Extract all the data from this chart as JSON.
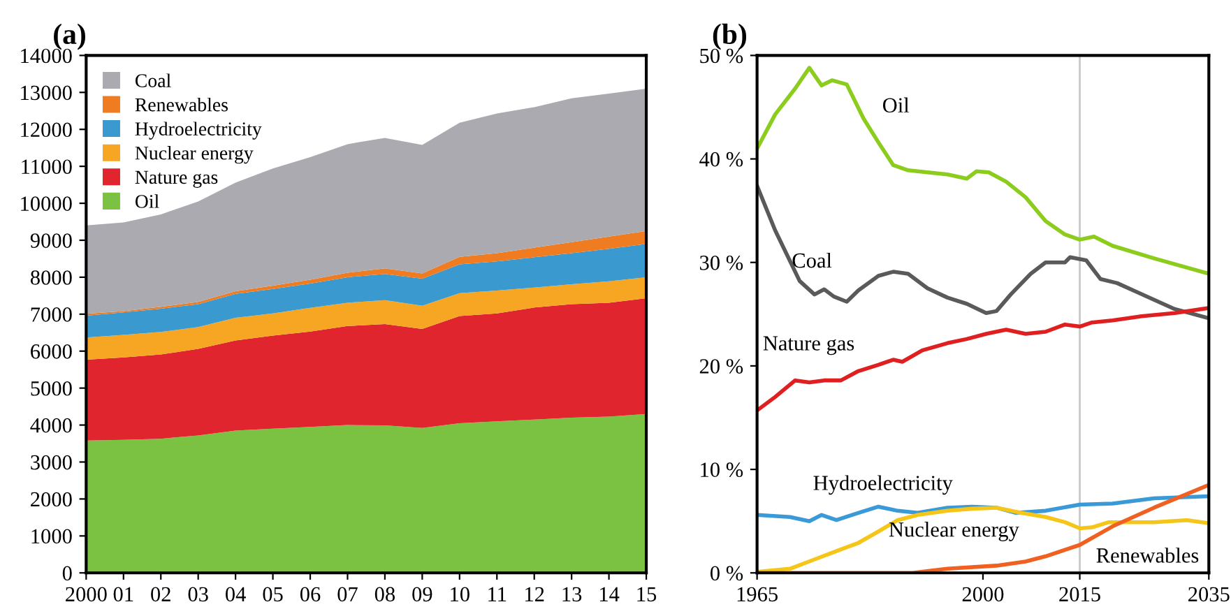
{
  "chart_data": [
    {
      "type": "area",
      "title": "(a)",
      "stacked": true,
      "legend": "top left",
      "x": [
        2000,
        2001,
        2002,
        2003,
        2004,
        2005,
        2006,
        2007,
        2008,
        2009,
        2010,
        2011,
        2012,
        2013,
        2014,
        2015
      ],
      "series": [
        {
          "name": "Oil",
          "color": "#7cc242",
          "values": [
            3580,
            3600,
            3630,
            3720,
            3850,
            3900,
            3950,
            4000,
            3990,
            3920,
            4050,
            4100,
            4150,
            4200,
            4230,
            4300
          ]
        },
        {
          "name": "Nature gas",
          "color": "#e0252f",
          "values": [
            2190,
            2230,
            2280,
            2340,
            2440,
            2520,
            2580,
            2680,
            2740,
            2680,
            2900,
            2920,
            3030,
            3070,
            3080,
            3130
          ]
        },
        {
          "name": "Nuclear energy",
          "color": "#f6a623",
          "values": [
            600,
            610,
            610,
            590,
            610,
            600,
            640,
            630,
            650,
            630,
            620,
            620,
            540,
            540,
            580,
            570
          ]
        },
        {
          "name": "Hydroelectricity",
          "color": "#3a9ad0",
          "values": [
            590,
            610,
            630,
            620,
            650,
            660,
            660,
            690,
            710,
            730,
            780,
            790,
            820,
            840,
            880,
            900
          ]
        },
        {
          "name": "Renewables",
          "color": "#f07c22",
          "values": [
            50,
            30,
            50,
            60,
            70,
            90,
            100,
            120,
            150,
            140,
            200,
            220,
            260,
            300,
            330,
            350
          ]
        },
        {
          "name": "Coal",
          "color": "#aaaab0",
          "values": [
            2390,
            2400,
            2500,
            2720,
            2940,
            3170,
            3320,
            3480,
            3530,
            3480,
            3630,
            3780,
            3800,
            3890,
            3870,
            3850
          ]
        }
      ],
      "xlim": [
        2000,
        2015
      ],
      "xticks": [
        2000,
        {
          "value": 2001,
          "label": "01"
        },
        {
          "value": 2002,
          "label": "02"
        },
        {
          "value": 2003,
          "label": "03"
        },
        {
          "value": 2004,
          "label": "04"
        },
        {
          "value": 2005,
          "label": "05"
        },
        {
          "value": 2006,
          "label": "06"
        },
        {
          "value": 2007,
          "label": "07"
        },
        {
          "value": 2008,
          "label": "08"
        },
        {
          "value": 2009,
          "label": "09"
        },
        {
          "value": 2010,
          "label": "10"
        },
        {
          "value": 2011,
          "label": "11"
        },
        {
          "value": 2012,
          "label": "12"
        },
        {
          "value": 2013,
          "label": "13"
        },
        {
          "value": 2014,
          "label": "14"
        },
        {
          "value": 2015,
          "label": "15"
        }
      ],
      "ylim": [
        0,
        14000
      ],
      "yticks": [
        0,
        1000,
        2000,
        3000,
        4000,
        5000,
        6000,
        7000,
        8000,
        9000,
        10000,
        11000,
        12000,
        13000,
        14000
      ]
    },
    {
      "type": "line",
      "title": "(b)",
      "legend": false,
      "series": [
        {
          "name": "Oil",
          "color": "#8ccc1c",
          "x": [
            1965,
            1967.8,
            1970.9,
            1973.1,
            1975,
            1976.6,
            1978.9,
            1981.5,
            1983.8,
            1986.1,
            1988.4,
            1991.4,
            1994.5,
            1997.5,
            1999,
            2000.9,
            2003.6,
            2006.6,
            2009.7,
            2012.7,
            2015,
            2017.2,
            2020.1,
            2026.5,
            2035
          ],
          "values": [
            41.0,
            44.3,
            46.8,
            48.8,
            47.1,
            47.6,
            47.2,
            43.9,
            41.6,
            39.4,
            38.9,
            38.7,
            38.5,
            38.1,
            38.8,
            38.7,
            37.8,
            36.3,
            34.0,
            32.7,
            32.2,
            32.5,
            31.6,
            30.4,
            28.9
          ]
        },
        {
          "name": "Coal",
          "color": "#5a5a5a",
          "x": [
            1965,
            1967.8,
            1971.6,
            1973.9,
            1975.4,
            1976.9,
            1978.9,
            1980.7,
            1983.8,
            1986.1,
            1988.4,
            1991.4,
            1994.5,
            1997.5,
            2000.5,
            2002.1,
            2004.3,
            2007.4,
            2009.7,
            2012.7,
            2013.5,
            2016,
            2018.2,
            2020.8,
            2024,
            2029.7,
            2035
          ],
          "values": [
            37.4,
            33.1,
            28.2,
            26.9,
            27.4,
            26.7,
            26.2,
            27.3,
            28.7,
            29.1,
            28.9,
            27.5,
            26.6,
            26.0,
            25.1,
            25.3,
            26.9,
            28.9,
            30.0,
            30.0,
            30.5,
            30.2,
            28.4,
            28.0,
            27.1,
            25.5,
            24.6
          ]
        },
        {
          "name": "Nature gas",
          "color": "#e02020",
          "x": [
            1965,
            1967.8,
            1970.9,
            1973.1,
            1975.4,
            1978,
            1980.7,
            1983.8,
            1986.1,
            1987.5,
            1990.6,
            1994.5,
            1997.5,
            2000.5,
            2003.6,
            2006.6,
            2009.7,
            2012.7,
            2015,
            2016.9,
            2020.1,
            2024.6,
            2029.7,
            2035
          ],
          "values": [
            15.7,
            17.0,
            18.6,
            18.4,
            18.6,
            18.6,
            19.5,
            20.1,
            20.6,
            20.4,
            21.5,
            22.2,
            22.6,
            23.1,
            23.5,
            23.1,
            23.3,
            24.0,
            23.8,
            24.2,
            24.4,
            24.8,
            25.1,
            25.6
          ]
        },
        {
          "name": "Hydroelectricity",
          "color": "#3a9ad8",
          "x": [
            1965,
            1970.1,
            1973.1,
            1975,
            1977.3,
            1980.7,
            1983.8,
            1986.8,
            1989.9,
            1994.5,
            1998.3,
            2002.1,
            2005.1,
            2009.7,
            2015,
            2020.1,
            2026.5,
            2035
          ],
          "values": [
            5.6,
            5.4,
            5.0,
            5.6,
            5.1,
            5.8,
            6.4,
            6.0,
            5.8,
            6.3,
            6.4,
            6.3,
            5.8,
            6.0,
            6.6,
            6.7,
            7.2,
            7.4
          ]
        },
        {
          "name": "Nuclear energy",
          "color": "#f5c518",
          "x": [
            1965,
            1970.1,
            1973.9,
            1977.7,
            1980.7,
            1983.8,
            1986.8,
            1989.9,
            1994.5,
            1998.3,
            2002.1,
            2005.9,
            2009.7,
            2012.7,
            2015,
            2016.9,
            2019.5,
            2026.5,
            2031.6,
            2035
          ],
          "values": [
            0.1,
            0.4,
            1.3,
            2.2,
            2.9,
            4.0,
            5.1,
            5.6,
            6.0,
            6.2,
            6.3,
            5.8,
            5.4,
            4.9,
            4.3,
            4.4,
            4.9,
            4.9,
            5.1,
            4.8
          ]
        },
        {
          "name": "Renewables",
          "color": "#f06020",
          "x": [
            1965,
            1989.1,
            1994.5,
            2002.1,
            2006.6,
            2009.7,
            2015,
            2020.1,
            2026.5,
            2035
          ],
          "values": [
            0,
            0,
            0.4,
            0.7,
            1.1,
            1.6,
            2.7,
            4.5,
            6.3,
            8.5
          ]
        }
      ],
      "ref_lines": [
        {
          "axis": "x",
          "value": 2015,
          "color": "#c8c8c8"
        }
      ],
      "xlim": [
        1965,
        2035
      ],
      "xticks": [
        1965,
        2000,
        2015,
        2035
      ],
      "ylim": [
        0,
        50
      ],
      "yticks": [
        {
          "value": 0,
          "label": "0 %"
        },
        {
          "value": 10,
          "label": "10 %"
        },
        {
          "value": 20,
          "label": "20 %"
        },
        {
          "value": 30,
          "label": "30 %"
        },
        {
          "value": 40,
          "label": "40 %"
        },
        {
          "value": 50,
          "label": "50 %"
        }
      ]
    }
  ]
}
